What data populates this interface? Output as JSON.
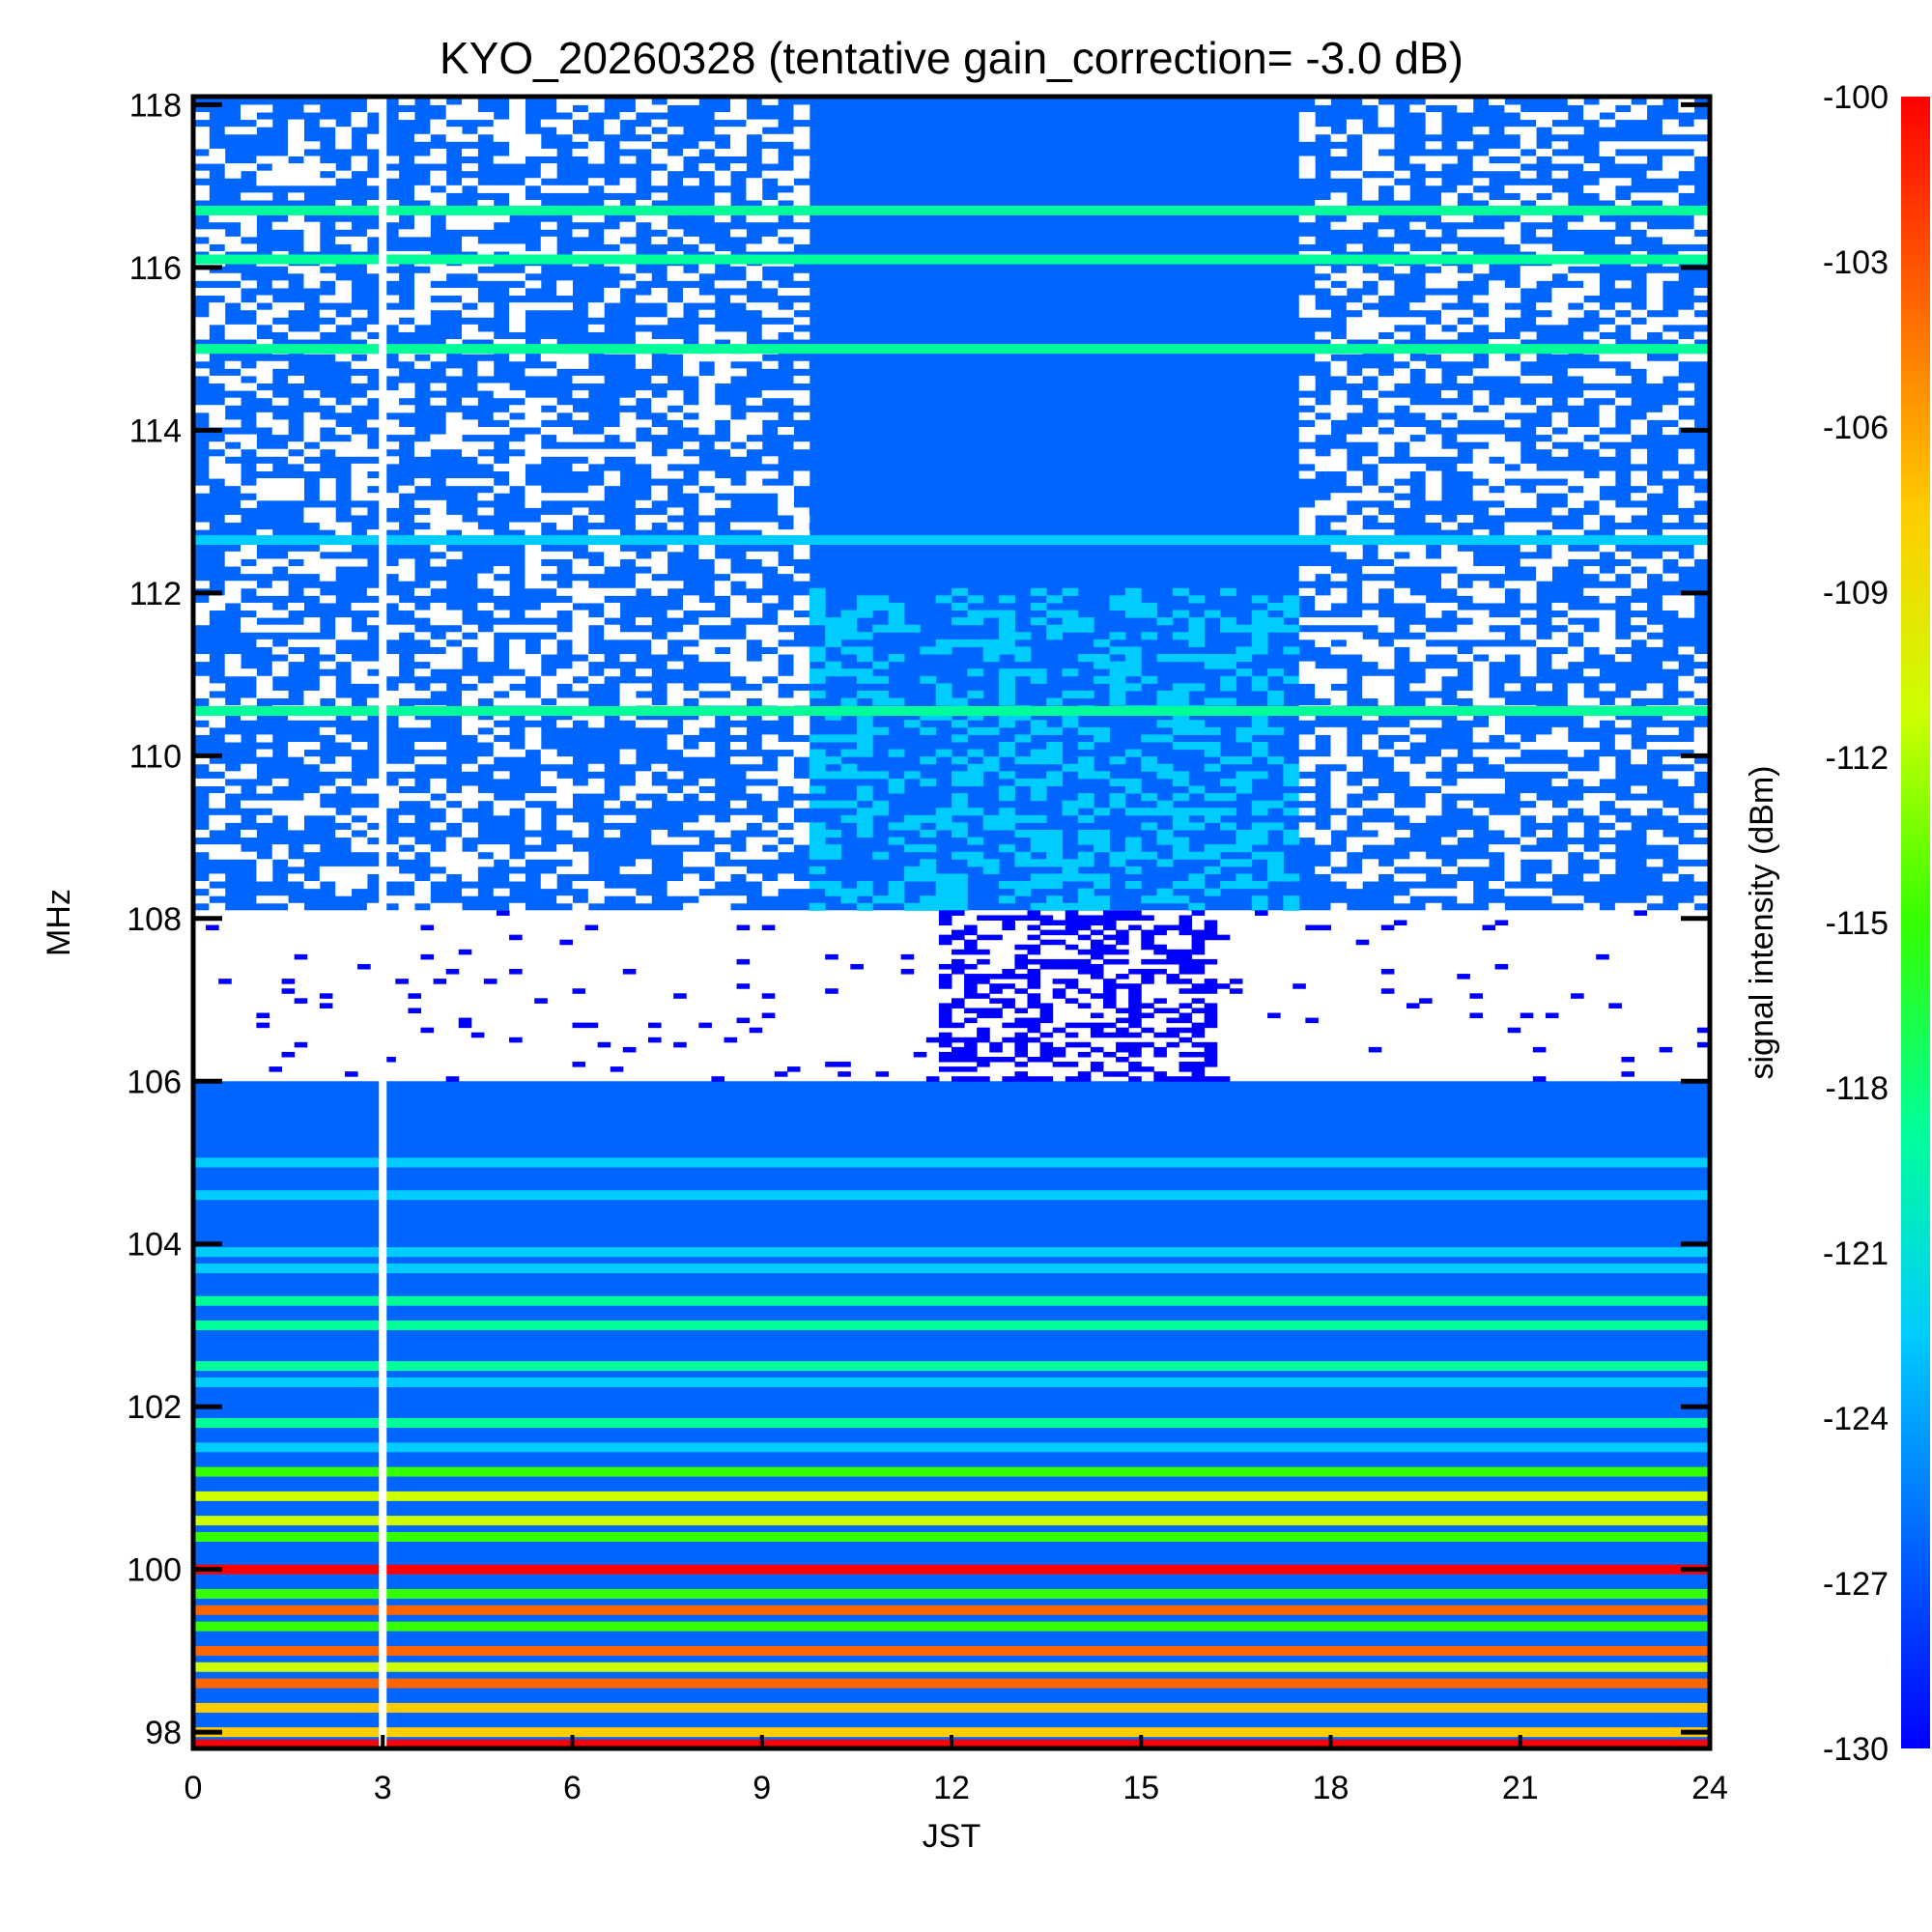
{
  "chart_data": {
    "type": "heatmap",
    "title": "KYO_20260328 (tentative gain_correction= -3.0 dB)",
    "xlabel": "JST",
    "ylabel": "MHz",
    "colorbar_label": "signal intensity (dBm)",
    "xlim": [
      0,
      24
    ],
    "ylim": [
      97.8,
      118.1
    ],
    "x_ticks": [
      "0",
      "3",
      "6",
      "9",
      "12",
      "15",
      "18",
      "21",
      "24"
    ],
    "y_ticks": [
      "98",
      "100",
      "102",
      "104",
      "106",
      "108",
      "110",
      "112",
      "114",
      "116",
      "118"
    ],
    "colorbar_range": [
      -130,
      -100
    ],
    "colorbar_ticks": [
      "-100",
      "-103",
      "-106",
      "-109",
      "-112",
      "-115",
      "-118",
      "-121",
      "-124",
      "-127",
      "-130"
    ],
    "colormap": [
      "#0000ff",
      "#0066ff",
      "#00ccff",
      "#00ff99",
      "#33ff00",
      "#ccff00",
      "#ffcc00",
      "#ff6600",
      "#ff0000"
    ],
    "gap_jst": 3.0,
    "bands": [
      {
        "from_mhz": 108.1,
        "to_mhz": 118.1,
        "description": "mostly -128 dBm noise, daytime enhancement 10-17 JST"
      },
      {
        "from_mhz": 106.0,
        "to_mhz": 108.1,
        "description": "sparse signals, daytime 12-16 JST"
      },
      {
        "from_mhz": 97.8,
        "to_mhz": 106.0,
        "description": "FM broadcast carriers, up to -100 dBm"
      }
    ],
    "carriers_mhz": [
      {
        "f": 116.7,
        "dbm": -119
      },
      {
        "f": 116.1,
        "dbm": -118
      },
      {
        "f": 115.0,
        "dbm": -118
      },
      {
        "f": 112.65,
        "dbm": -121
      },
      {
        "f": 110.55,
        "dbm": -119
      },
      {
        "f": 105.7,
        "dbm": -128
      },
      {
        "f": 105.3,
        "dbm": -127
      },
      {
        "f": 105.0,
        "dbm": -124
      },
      {
        "f": 104.6,
        "dbm": -122
      },
      {
        "f": 104.3,
        "dbm": -125
      },
      {
        "f": 103.9,
        "dbm": -122
      },
      {
        "f": 103.7,
        "dbm": -121
      },
      {
        "f": 103.3,
        "dbm": -119
      },
      {
        "f": 103.0,
        "dbm": -119
      },
      {
        "f": 102.5,
        "dbm": -118
      },
      {
        "f": 102.3,
        "dbm": -124
      },
      {
        "f": 101.8,
        "dbm": -118
      },
      {
        "f": 101.5,
        "dbm": -122
      },
      {
        "f": 101.2,
        "dbm": -114
      },
      {
        "f": 100.9,
        "dbm": -111
      },
      {
        "f": 100.6,
        "dbm": -113
      },
      {
        "f": 100.4,
        "dbm": -114
      },
      {
        "f": 100.0,
        "dbm": -100
      },
      {
        "f": 99.7,
        "dbm": -116
      },
      {
        "f": 99.5,
        "dbm": -103
      },
      {
        "f": 99.3,
        "dbm": -115
      },
      {
        "f": 99.0,
        "dbm": -104
      },
      {
        "f": 98.8,
        "dbm": -111
      },
      {
        "f": 98.6,
        "dbm": -103
      },
      {
        "f": 98.3,
        "dbm": -109
      },
      {
        "f": 98.0,
        "dbm": -108
      },
      {
        "f": 97.85,
        "dbm": -100
      }
    ]
  }
}
